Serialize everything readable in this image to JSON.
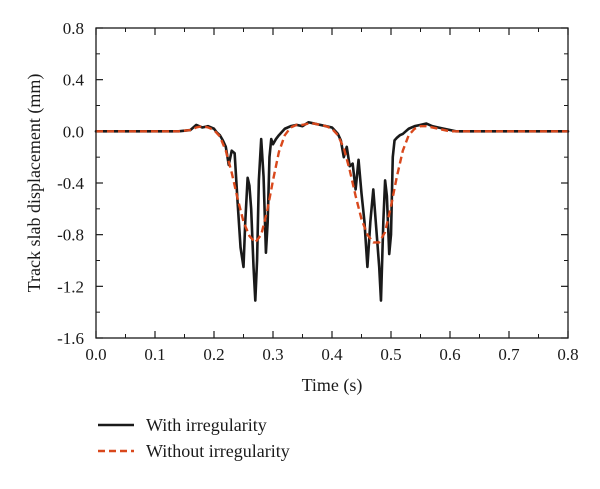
{
  "chart_data": {
    "type": "line",
    "title": "",
    "xlabel": "Time (s)",
    "ylabel": "Track slab displacement (mm)",
    "xlim": [
      0.0,
      0.8
    ],
    "ylim": [
      -1.6,
      0.8
    ],
    "xticks": [
      0.0,
      0.1,
      0.2,
      0.3,
      0.4,
      0.5,
      0.6,
      0.7,
      0.8
    ],
    "yticks": [
      0.8,
      0.4,
      0.0,
      -0.4,
      -0.8,
      -1.2,
      -1.6
    ],
    "xtick_labels": [
      "0.0",
      "0.1",
      "0.2",
      "0.3",
      "0.4",
      "0.5",
      "0.6",
      "0.7",
      "0.8"
    ],
    "ytick_labels": [
      "0.8",
      "0.4",
      "0.0",
      "-0.4",
      "-0.8",
      "-1.2",
      "-1.6"
    ],
    "grid": false,
    "legend_position": "bottom-left, below the plot",
    "series": [
      {
        "name": "With irregularity",
        "color": "#1a1a1a",
        "style": "solid",
        "x": [
          0.0,
          0.14,
          0.16,
          0.17,
          0.18,
          0.19,
          0.2,
          0.205,
          0.21,
          0.215,
          0.22,
          0.225,
          0.23,
          0.235,
          0.24,
          0.245,
          0.25,
          0.253,
          0.257,
          0.26,
          0.263,
          0.267,
          0.27,
          0.273,
          0.276,
          0.28,
          0.284,
          0.288,
          0.291,
          0.294,
          0.297,
          0.3,
          0.305,
          0.31,
          0.32,
          0.33,
          0.34,
          0.35,
          0.36,
          0.37,
          0.38,
          0.39,
          0.4,
          0.41,
          0.415,
          0.42,
          0.425,
          0.43,
          0.435,
          0.44,
          0.445,
          0.45,
          0.455,
          0.46,
          0.465,
          0.47,
          0.475,
          0.48,
          0.483,
          0.487,
          0.49,
          0.493,
          0.497,
          0.5,
          0.503,
          0.506,
          0.51,
          0.515,
          0.52,
          0.525,
          0.53,
          0.54,
          0.55,
          0.56,
          0.57,
          0.58,
          0.59,
          0.6,
          0.61,
          0.8
        ],
        "y": [
          0.0,
          0.0,
          0.01,
          0.05,
          0.03,
          0.04,
          0.02,
          -0.01,
          -0.03,
          -0.07,
          -0.12,
          -0.26,
          -0.15,
          -0.17,
          -0.55,
          -0.9,
          -1.05,
          -0.7,
          -0.36,
          -0.42,
          -0.6,
          -1.05,
          -1.31,
          -1.0,
          -0.38,
          -0.06,
          -0.35,
          -0.94,
          -0.7,
          -0.2,
          -0.06,
          -0.1,
          -0.06,
          -0.03,
          0.02,
          0.04,
          0.05,
          0.04,
          0.07,
          0.06,
          0.05,
          0.04,
          0.03,
          -0.02,
          -0.07,
          -0.2,
          -0.12,
          -0.27,
          -0.25,
          -0.45,
          -0.22,
          -0.48,
          -0.7,
          -1.05,
          -0.7,
          -0.45,
          -0.75,
          -1.05,
          -1.31,
          -0.7,
          -0.38,
          -0.5,
          -0.95,
          -0.8,
          -0.2,
          -0.07,
          -0.05,
          -0.03,
          -0.02,
          0.0,
          0.02,
          0.04,
          0.05,
          0.06,
          0.04,
          0.03,
          0.02,
          0.01,
          0.0,
          0.0
        ]
      },
      {
        "name": "Without irregularity",
        "color": "#d9481c",
        "style": "dashed",
        "x": [
          0.0,
          0.14,
          0.16,
          0.17,
          0.18,
          0.19,
          0.2,
          0.21,
          0.22,
          0.23,
          0.24,
          0.25,
          0.26,
          0.27,
          0.28,
          0.29,
          0.3,
          0.31,
          0.32,
          0.33,
          0.34,
          0.35,
          0.36,
          0.37,
          0.38,
          0.39,
          0.4,
          0.41,
          0.42,
          0.43,
          0.44,
          0.45,
          0.46,
          0.47,
          0.48,
          0.49,
          0.5,
          0.51,
          0.52,
          0.53,
          0.54,
          0.55,
          0.56,
          0.57,
          0.58,
          0.59,
          0.6,
          0.61,
          0.8
        ],
        "y": [
          0.0,
          0.0,
          0.01,
          0.03,
          0.04,
          0.03,
          0.01,
          -0.04,
          -0.15,
          -0.32,
          -0.52,
          -0.7,
          -0.81,
          -0.86,
          -0.8,
          -0.62,
          -0.38,
          -0.16,
          -0.03,
          0.03,
          0.05,
          0.05,
          0.06,
          0.06,
          0.05,
          0.04,
          0.02,
          -0.03,
          -0.13,
          -0.3,
          -0.5,
          -0.68,
          -0.8,
          -0.86,
          -0.86,
          -0.78,
          -0.58,
          -0.35,
          -0.15,
          -0.03,
          0.02,
          0.04,
          0.04,
          0.03,
          0.02,
          0.01,
          0.0,
          0.0,
          0.0
        ]
      }
    ]
  }
}
